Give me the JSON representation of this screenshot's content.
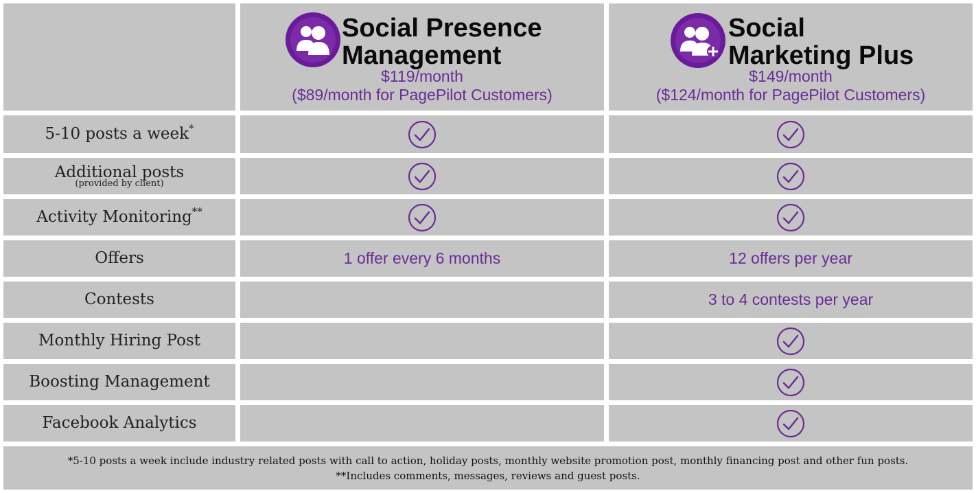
{
  "plans": [
    {
      "title_line1": "Social Presence",
      "title_line2": "Management",
      "price": "$119/month",
      "price_note": "($89/month for PagePilot Customers)",
      "icon": "users-icon"
    },
    {
      "title_line1": "Social",
      "title_line2": "Marketing Plus",
      "price": "$149/month",
      "price_note": "($124/month for PagePilot Customers)",
      "icon": "users-plus-icon"
    }
  ],
  "features": [
    {
      "label": "5-10 posts a week",
      "mark": "*",
      "plan1": "check",
      "plan2": "check"
    },
    {
      "label": "Additional posts",
      "sublabel": "(provided by client)",
      "plan1": "check",
      "plan2": "check"
    },
    {
      "label": "Activity Monitoring",
      "mark": "**",
      "plan1": "check",
      "plan2": "check"
    },
    {
      "label": "Offers",
      "plan1_text": "1 offer every 6 months",
      "plan2_text": "12 offers per year"
    },
    {
      "label": "Contests",
      "plan2_text": "3 to 4 contests per year"
    },
    {
      "label": "Monthly Hiring Post",
      "plan2": "check"
    },
    {
      "label": "Boosting Management",
      "plan2": "check"
    },
    {
      "label": "Facebook Analytics",
      "plan2": "check"
    }
  ],
  "footnotes": [
    "*5-10 posts a week include industry related posts with call to action, holiday posts, monthly website promotion post, monthly financing post and other fun posts.",
    "**Includes comments, messages, reviews and guest posts."
  ],
  "colors": {
    "cell_bg": "#c4c4c4",
    "accent": "#6a2c96",
    "icon_circle": "#6a1b9a"
  }
}
